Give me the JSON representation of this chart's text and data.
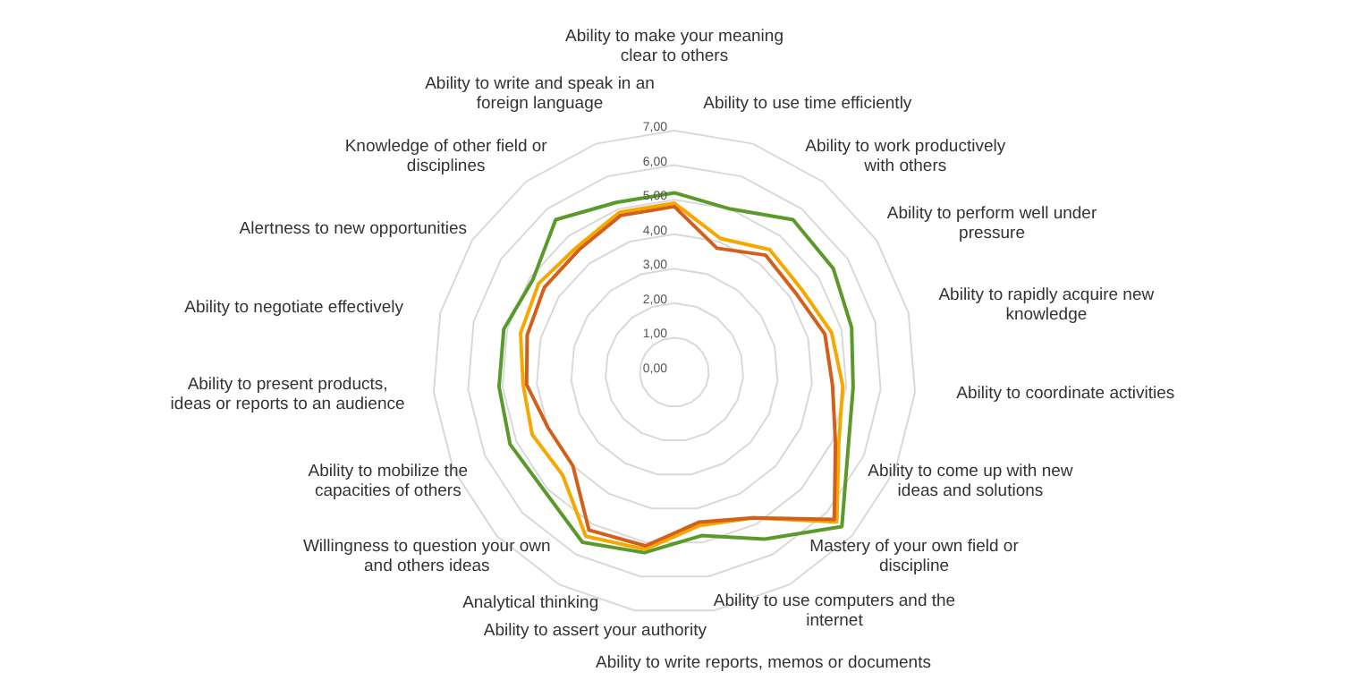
{
  "chart_data": {
    "type": "radar",
    "categories": [
      "Ability to make your meaning clear to others",
      "Ability to use time efficiently",
      "Ability to work productively with others",
      "Ability to perform well under pressure",
      "Ability to rapidly acquire new knowledge",
      "Ability to coordinate activities",
      "Ability to come up with new ideas and solutions",
      "Mastery of your own field or discipline",
      "Ability to use computers and the internet",
      "Ability to write reports, memos or documents",
      "Ability to assert your authority",
      "Analytical thinking",
      "Willingness to question your own and others ideas",
      "Ability to mobilize the capacities of others",
      "Ability to present products, ideas or reports to an audience",
      "Ability to negotiate effectively",
      "Alertness to new opportunities",
      "Knowledge of other field or disciplines",
      "Ability to write and speak in an foreign language"
    ],
    "series": [
      {
        "color": "#5a9a2a",
        "values": [
          5.2,
          5.0,
          5.6,
          5.5,
          5.3,
          5.2,
          5.5,
          6.6,
          5.5,
          4.8,
          5.3,
          5.6,
          5.1,
          5.2,
          5.1,
          5.1,
          4.9,
          5.6,
          5.2
        ]
      },
      {
        "color": "#f5a800",
        "values": [
          4.9,
          4.1,
          4.5,
          4.4,
          4.7,
          4.9,
          5.2,
          6.4,
          4.8,
          4.5,
          5.2,
          5.4,
          4.4,
          4.5,
          4.4,
          4.6,
          4.7,
          4.6,
          4.9
        ]
      },
      {
        "color": "#d2601a",
        "values": [
          4.8,
          3.8,
          4.3,
          4.2,
          4.5,
          4.6,
          5.1,
          6.3,
          4.8,
          4.4,
          5.1,
          5.2,
          4.0,
          4.0,
          4.3,
          4.4,
          4.5,
          4.5,
          4.8
        ]
      }
    ],
    "ylim": [
      0,
      7
    ],
    "yticks": [
      {
        "value": 0,
        "label": "0,00"
      },
      {
        "value": 1,
        "label": "1,00"
      },
      {
        "value": 2,
        "label": "2,00"
      },
      {
        "value": 3,
        "label": "3,00"
      },
      {
        "value": 4,
        "label": "4,00"
      },
      {
        "value": 5,
        "label": "5,00"
      },
      {
        "value": 6,
        "label": "6,00"
      },
      {
        "value": 7,
        "label": "7,00"
      }
    ],
    "grid": true,
    "legend": false,
    "marker": "none",
    "line_style": "solid"
  }
}
